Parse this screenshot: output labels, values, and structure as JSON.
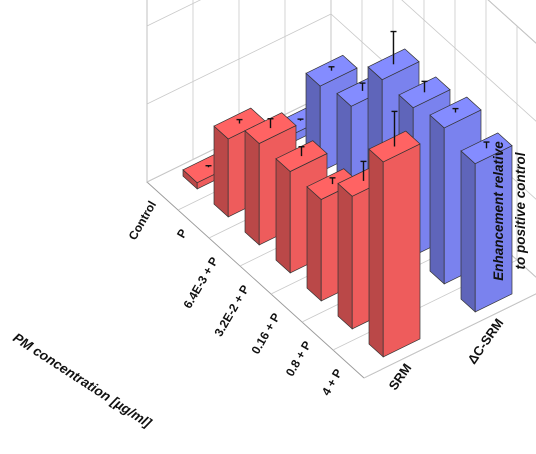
{
  "chart_data": {
    "type": "bar3d",
    "categories": [
      "4 + P",
      "0.8 + P",
      "0.16 + P",
      "3.2E-2 + P",
      "6.4E-3 + P",
      "P",
      "Control"
    ],
    "series": [
      {
        "name": "SRM",
        "values": [
          2.5,
          1.7,
          1.3,
          1.3,
          1.3,
          1.0,
          0.08
        ],
        "errors": [
          0.45,
          0.25,
          0.08,
          0.12,
          0.12,
          0.05,
          0.02
        ],
        "color": "#ee5c5c"
      },
      {
        "name": "ΔC-SRM",
        "values": [
          1.9,
          2.0,
          1.9,
          1.9,
          1.2,
          1.1,
          0.1
        ],
        "errors": [
          0.08,
          0.05,
          0.14,
          0.42,
          0.1,
          0.05,
          0.02
        ],
        "color": "#7a82ee"
      }
    ],
    "xlabel": "PM concentration [µg/ml]",
    "zlabel": [
      "Enhancement relative",
      "to positive control"
    ],
    "zlim": [
      0,
      3
    ],
    "zticks": [
      "0",
      "1",
      "2",
      "3"
    ],
    "grid": true
  }
}
